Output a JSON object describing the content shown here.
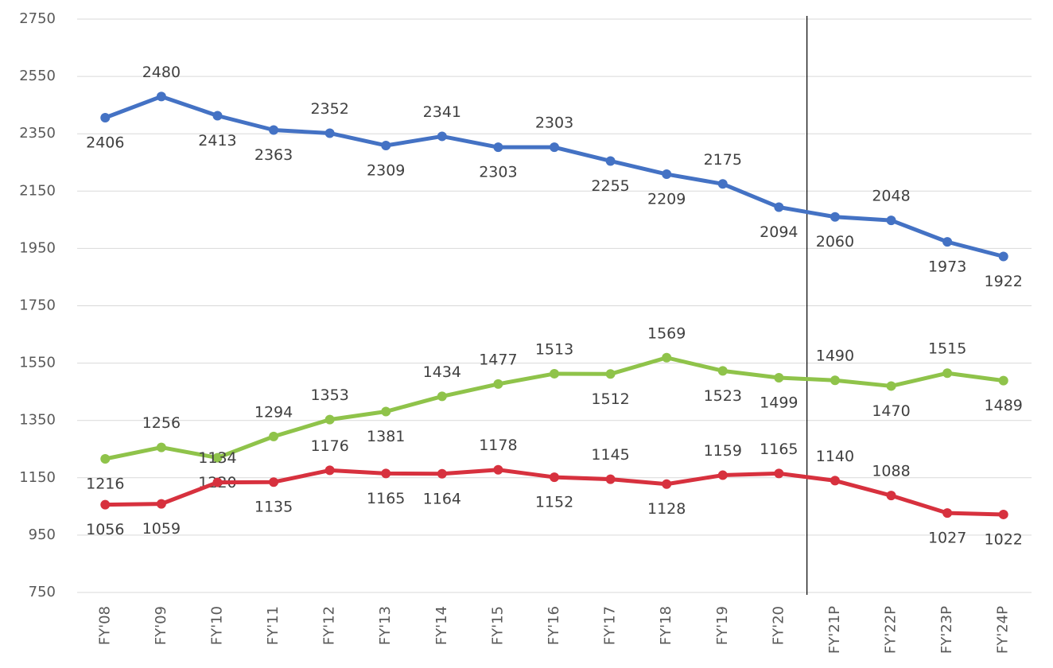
{
  "chart_data": {
    "type": "line",
    "categories": [
      "FY'08",
      "FY'09",
      "FY'10",
      "FY'11",
      "FY'12",
      "FY'13",
      "FY'14",
      "FY'15",
      "FY'16",
      "FY'17",
      "FY'18",
      "FY'19",
      "FY'20",
      "FY'21P",
      "FY'22P",
      "FY'23P",
      "FY'24P"
    ],
    "series": [
      {
        "color": "#4472c4",
        "values": [
          2406,
          2480,
          2413,
          2363,
          2352,
          2309,
          2341,
          2303,
          2303,
          2255,
          2209,
          2175,
          2094,
          2060,
          2048,
          1973,
          1922
        ]
      },
      {
        "color": "#8fc34a",
        "values": [
          1216,
          1256,
          1220,
          1294,
          1353,
          1381,
          1434,
          1477,
          1513,
          1512,
          1569,
          1523,
          1499,
          1490,
          1470,
          1515,
          1489
        ]
      },
      {
        "color": "#d7313e",
        "values": [
          1056,
          1059,
          1134,
          1135,
          1176,
          1165,
          1164,
          1178,
          1152,
          1145,
          1128,
          1159,
          1165,
          1140,
          1088,
          1027,
          1022
        ]
      }
    ],
    "ylim": [
      750,
      2750
    ],
    "yticks": [
      750,
      950,
      1150,
      1350,
      1550,
      1750,
      1950,
      2150,
      2350,
      2550,
      2750
    ],
    "grid": true
  }
}
